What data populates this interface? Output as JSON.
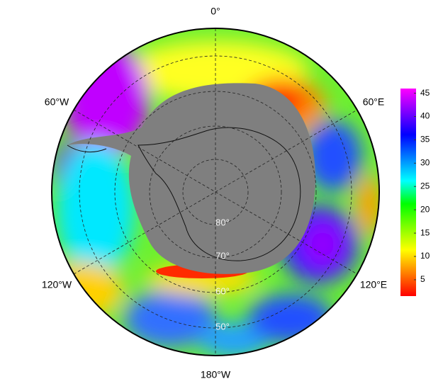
{
  "map": {
    "longitude_labels": [
      "0°",
      "60°E",
      "120°E",
      "180°W",
      "120°W",
      "60°W"
    ],
    "latitude_labels": [
      "80°",
      "70°",
      "60°",
      "50°"
    ],
    "colorbar": {
      "range": [
        1.5,
        46
      ],
      "ticks": [
        5,
        10,
        15,
        20,
        25,
        30,
        35,
        40,
        45
      ],
      "colors": [
        "#ff0000",
        "#ff8000",
        "#ffff00",
        "#80ff00",
        "#00ff00",
        "#00ffff",
        "#0080ff",
        "#0000ff",
        "#8000ff",
        "#ff00ff"
      ]
    }
  }
}
